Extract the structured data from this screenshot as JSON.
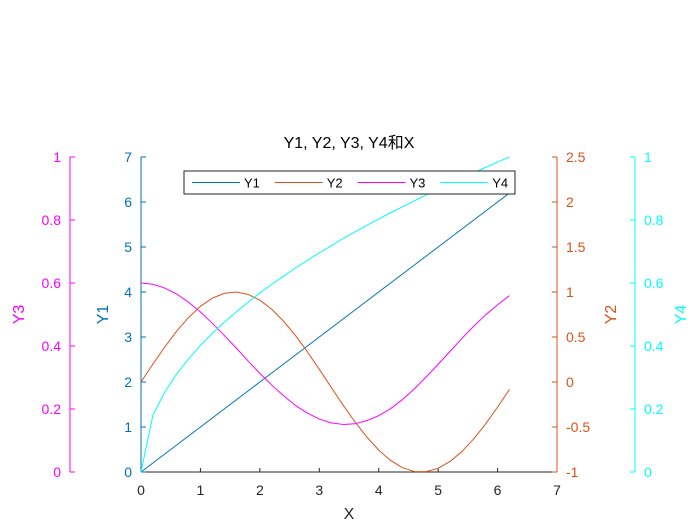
{
  "chart_data": {
    "type": "line",
    "title": "Y1, Y2, Y3, Y4和X",
    "xlabel": "X",
    "xlim": [
      0,
      7
    ],
    "xticks": [
      "0",
      "1",
      "2",
      "3",
      "4",
      "5",
      "6",
      "7"
    ],
    "grid": false,
    "legend": {
      "placement": "top-center",
      "orientation": "horizontal",
      "entries": [
        "Y1",
        "Y2",
        "Y3",
        "Y4"
      ]
    },
    "x": [
      0,
      0.2,
      0.4,
      0.6,
      0.8,
      1.0,
      1.2,
      1.4,
      1.6,
      1.8,
      2.0,
      2.2,
      2.4,
      2.6,
      2.8,
      3.0,
      3.2,
      3.4,
      3.6,
      3.8,
      4.0,
      4.2,
      4.4,
      4.6,
      4.8,
      5.0,
      5.2,
      5.4,
      5.6,
      5.8,
      6.0,
      6.2
    ],
    "axes": [
      {
        "id": "y1",
        "label": "Y1",
        "color": "#0072BD",
        "ylim": [
          0,
          7
        ],
        "ticks": [
          "0",
          "1",
          "2",
          "3",
          "4",
          "5",
          "6",
          "7"
        ],
        "side": "left",
        "offset": "inner"
      },
      {
        "id": "y3",
        "label": "Y3",
        "color": "#FF00FF",
        "ylim": [
          0,
          1
        ],
        "ticks": [
          "0",
          "0.2",
          "0.4",
          "0.6",
          "0.8",
          "1"
        ],
        "side": "left",
        "offset": "outer"
      },
      {
        "id": "y2",
        "label": "Y2",
        "color": "#D95319",
        "ylim": [
          -1,
          2.5
        ],
        "ticks": [
          "-1",
          "-0.5",
          "0",
          "0.5",
          "1",
          "1.5",
          "2",
          "2.5"
        ],
        "side": "right",
        "offset": "inner"
      },
      {
        "id": "y4",
        "label": "Y4",
        "color": "#00FFFF",
        "ylim": [
          0,
          1
        ],
        "ticks": [
          "0",
          "0.2",
          "0.4",
          "0.6",
          "0.8",
          "1"
        ],
        "side": "right",
        "offset": "outer"
      }
    ],
    "series": [
      {
        "name": "Y1",
        "axis": "y1",
        "color": "#0072BD",
        "values": [
          0,
          0.2,
          0.4,
          0.6,
          0.8,
          1.0,
          1.2,
          1.4,
          1.6,
          1.8,
          2.0,
          2.2,
          2.4,
          2.6,
          2.8,
          3.0,
          3.2,
          3.4,
          3.6,
          3.8,
          4.0,
          4.2,
          4.4,
          4.6,
          4.8,
          5.0,
          5.2,
          5.4,
          5.6,
          5.8,
          6.0,
          6.2
        ]
      },
      {
        "name": "Y2",
        "axis": "y2",
        "color": "#D95319",
        "values": [
          0,
          0.199,
          0.389,
          0.565,
          0.717,
          0.841,
          0.932,
          0.985,
          1.0,
          0.974,
          0.909,
          0.808,
          0.675,
          0.516,
          0.335,
          0.141,
          -0.058,
          -0.256,
          -0.443,
          -0.612,
          -0.757,
          -0.872,
          -0.952,
          -0.994,
          -0.996,
          -0.959,
          -0.883,
          -0.773,
          -0.631,
          -0.465,
          -0.279,
          -0.083
        ]
      },
      {
        "name": "Y3",
        "axis": "y3",
        "color": "#FF00FF",
        "values": [
          0.6,
          0.596,
          0.584,
          0.565,
          0.539,
          0.508,
          0.472,
          0.434,
          0.394,
          0.353,
          0.313,
          0.276,
          0.242,
          0.211,
          0.187,
          0.168,
          0.156,
          0.151,
          0.153,
          0.163,
          0.179,
          0.201,
          0.23,
          0.264,
          0.302,
          0.342,
          0.383,
          0.424,
          0.463,
          0.499,
          0.531,
          0.56
        ]
      },
      {
        "name": "Y4",
        "axis": "y4",
        "color": "#00FFFF",
        "values": [
          0,
          0.18,
          0.254,
          0.311,
          0.359,
          0.402,
          0.44,
          0.475,
          0.508,
          0.539,
          0.568,
          0.596,
          0.622,
          0.648,
          0.672,
          0.696,
          0.718,
          0.741,
          0.762,
          0.783,
          0.803,
          0.823,
          0.842,
          0.861,
          0.88,
          0.898,
          0.916,
          0.933,
          0.95,
          0.967,
          0.984,
          1.0
        ]
      }
    ]
  }
}
